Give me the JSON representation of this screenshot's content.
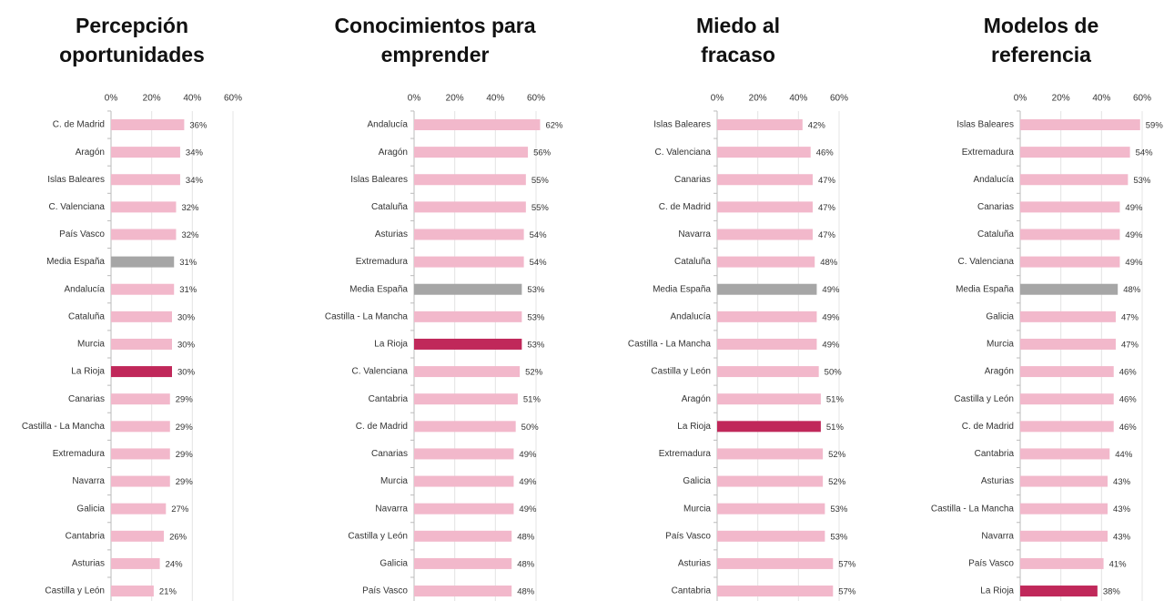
{
  "chart_data": [
    {
      "type": "hbar",
      "title": [
        "Percepción",
        "oportunidades"
      ],
      "categories": [
        "C. de Madrid",
        "Aragón",
        "Islas Baleares",
        "C. Valenciana",
        "País Vasco",
        "Media España",
        "Andalucía",
        "Cataluña",
        "Murcia",
        "La Rioja",
        "Canarias",
        "Castilla - La Mancha",
        "Extremadura",
        "Navarra",
        "Galicia",
        "Cantabria",
        "Asturias",
        "Castilla y León"
      ],
      "values": [
        36,
        34,
        34,
        32,
        32,
        31,
        31,
        30,
        30,
        30,
        29,
        29,
        29,
        29,
        27,
        26,
        24,
        21
      ],
      "value_labels": [
        "36%",
        "34%",
        "34%",
        "32%",
        "32%",
        "31%",
        "31%",
        "30%",
        "30%",
        "30%",
        "29%",
        "29%",
        "29%",
        "29%",
        "27%",
        "26%",
        "24%",
        "21%"
      ],
      "colors": [
        "#f2b8cb",
        "#f2b8cb",
        "#f2b8cb",
        "#f2b8cb",
        "#f2b8cb",
        "#a6a6a6",
        "#f2b8cb",
        "#f2b8cb",
        "#f2b8cb",
        "#c0285a",
        "#f2b8cb",
        "#f2b8cb",
        "#f2b8cb",
        "#f2b8cb",
        "#f2b8cb",
        "#f2b8cb",
        "#f2b8cb",
        "#f2b8cb"
      ],
      "xlim": [
        0,
        60
      ],
      "xticks": [
        {
          "value": 0,
          "label": "0%"
        },
        {
          "value": 20,
          "label": "20%"
        },
        {
          "value": 40,
          "label": "40%"
        },
        {
          "value": 60,
          "label": "60%"
        }
      ],
      "grid": true
    },
    {
      "type": "hbar",
      "title": [
        "Conocimientos para",
        "emprender"
      ],
      "categories": [
        "Andalucía",
        "Aragón",
        "Islas Baleares",
        "Cataluña",
        "Asturias",
        "Extremadura",
        "Media España",
        "Castilla - La Mancha",
        "La Rioja",
        "C. Valenciana",
        "Cantabria",
        "C. de Madrid",
        "Canarias",
        "Murcia",
        "Navarra",
        "Castilla y León",
        "Galicia",
        "País Vasco"
      ],
      "values": [
        62,
        56,
        55,
        55,
        54,
        54,
        53,
        53,
        53,
        52,
        51,
        50,
        49,
        49,
        49,
        48,
        48,
        48
      ],
      "value_labels": [
        "62%",
        "56%",
        "55%",
        "55%",
        "54%",
        "54%",
        "53%",
        "53%",
        "53%",
        "52%",
        "51%",
        "50%",
        "49%",
        "49%",
        "49%",
        "48%",
        "48%",
        "48%"
      ],
      "colors": [
        "#f2b8cb",
        "#f2b8cb",
        "#f2b8cb",
        "#f2b8cb",
        "#f2b8cb",
        "#f2b8cb",
        "#a6a6a6",
        "#f2b8cb",
        "#c0285a",
        "#f2b8cb",
        "#f2b8cb",
        "#f2b8cb",
        "#f2b8cb",
        "#f2b8cb",
        "#f2b8cb",
        "#f2b8cb",
        "#f2b8cb",
        "#f2b8cb"
      ],
      "xlim": [
        0,
        60
      ],
      "xticks": [
        {
          "value": 0,
          "label": "0%"
        },
        {
          "value": 20,
          "label": "20%"
        },
        {
          "value": 40,
          "label": "40%"
        },
        {
          "value": 60,
          "label": "60%"
        }
      ],
      "grid": true
    },
    {
      "type": "hbar",
      "title": [
        "Miedo al",
        "fracaso"
      ],
      "categories": [
        "Islas Baleares",
        "C. Valenciana",
        "Canarias",
        "C. de Madrid",
        "Navarra",
        "Cataluña",
        "Media España",
        "Andalucía",
        "Castilla - La Mancha",
        "Castilla y León",
        "Aragón",
        "La Rioja",
        "Extremadura",
        "Galicia",
        "Murcia",
        "País Vasco",
        "Asturias",
        "Cantabria"
      ],
      "values": [
        42,
        46,
        47,
        47,
        47,
        48,
        49,
        49,
        49,
        50,
        51,
        51,
        52,
        52,
        53,
        53,
        57,
        57
      ],
      "value_labels": [
        "42%",
        "46%",
        "47%",
        "47%",
        "47%",
        "48%",
        "49%",
        "49%",
        "49%",
        "50%",
        "51%",
        "51%",
        "52%",
        "52%",
        "53%",
        "53%",
        "57%",
        "57%"
      ],
      "colors": [
        "#f2b8cb",
        "#f2b8cb",
        "#f2b8cb",
        "#f2b8cb",
        "#f2b8cb",
        "#f2b8cb",
        "#a6a6a6",
        "#f2b8cb",
        "#f2b8cb",
        "#f2b8cb",
        "#f2b8cb",
        "#c0285a",
        "#f2b8cb",
        "#f2b8cb",
        "#f2b8cb",
        "#f2b8cb",
        "#f2b8cb",
        "#f2b8cb"
      ],
      "xlim": [
        0,
        60
      ],
      "xticks": [
        {
          "value": 0,
          "label": "0%"
        },
        {
          "value": 20,
          "label": "20%"
        },
        {
          "value": 40,
          "label": "40%"
        },
        {
          "value": 60,
          "label": "60%"
        }
      ],
      "grid": true
    },
    {
      "type": "hbar",
      "title": [
        "Modelos de",
        "referencia"
      ],
      "categories": [
        "Islas Baleares",
        "Extremadura",
        "Andalucía",
        "Canarias",
        "Cataluña",
        "C. Valenciana",
        "Media España",
        "Galicia",
        "Murcia",
        "Aragón",
        "Castilla y León",
        "C. de Madrid",
        "Cantabria",
        "Asturias",
        "Castilla - La Mancha",
        "Navarra",
        "País Vasco",
        "La Rioja"
      ],
      "values": [
        59,
        54,
        53,
        49,
        49,
        49,
        48,
        47,
        47,
        46,
        46,
        46,
        44,
        43,
        43,
        43,
        41,
        38
      ],
      "value_labels": [
        "59%",
        "54%",
        "53%",
        "49%",
        "49%",
        "49%",
        "48%",
        "47%",
        "47%",
        "46%",
        "46%",
        "46%",
        "44%",
        "43%",
        "43%",
        "43%",
        "41%",
        "38%"
      ],
      "colors": [
        "#f2b8cb",
        "#f2b8cb",
        "#f2b8cb",
        "#f2b8cb",
        "#f2b8cb",
        "#f2b8cb",
        "#a6a6a6",
        "#f2b8cb",
        "#f2b8cb",
        "#f2b8cb",
        "#f2b8cb",
        "#f2b8cb",
        "#f2b8cb",
        "#f2b8cb",
        "#f2b8cb",
        "#f2b8cb",
        "#f2b8cb",
        "#c0285a"
      ],
      "xlim": [
        0,
        60
      ],
      "xticks": [
        {
          "value": 0,
          "label": "0%"
        },
        {
          "value": 20,
          "label": "20%"
        },
        {
          "value": 40,
          "label": "40%"
        },
        {
          "value": 60,
          "label": "60%"
        }
      ],
      "grid": true
    }
  ]
}
